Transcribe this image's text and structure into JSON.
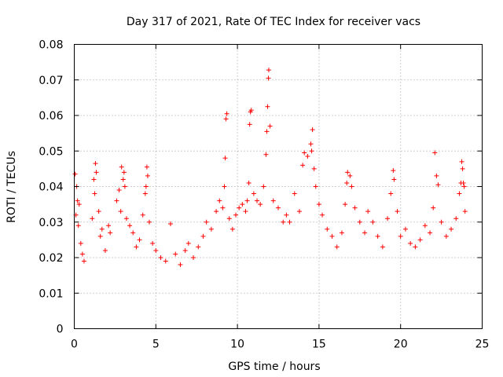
{
  "chart_data": {
    "type": "scatter",
    "title": "Day 317 of 2021, Rate Of TEC Index for receiver vacs",
    "xlabel": "GPS time / hours",
    "ylabel": "ROTI / TECUs",
    "xlim": [
      0,
      25
    ],
    "ylim": [
      0,
      0.08
    ],
    "x_ticks": [
      "0",
      "5",
      "10",
      "15",
      "20",
      "25"
    ],
    "y_ticks": [
      "0",
      "0.01",
      "0.02",
      "0.03",
      "0.04",
      "0.05",
      "0.06",
      "0.07",
      "0.08"
    ],
    "grid": true,
    "marker": "+",
    "color": "#ff0000",
    "series": [
      {
        "name": "ROTI",
        "points": [
          [
            0.05,
            0.0435
          ],
          [
            0.15,
            0.04
          ],
          [
            0.2,
            0.036
          ],
          [
            0.3,
            0.035
          ],
          [
            0.1,
            0.032
          ],
          [
            0.25,
            0.029
          ],
          [
            0.4,
            0.024
          ],
          [
            0.5,
            0.021
          ],
          [
            0.6,
            0.019
          ],
          [
            1.1,
            0.031
          ],
          [
            1.2,
            0.042
          ],
          [
            1.3,
            0.0465
          ],
          [
            1.35,
            0.044
          ],
          [
            1.25,
            0.038
          ],
          [
            1.5,
            0.033
          ],
          [
            1.7,
            0.028
          ],
          [
            1.6,
            0.026
          ],
          [
            1.9,
            0.022
          ],
          [
            2.1,
            0.029
          ],
          [
            2.2,
            0.027
          ],
          [
            2.6,
            0.036
          ],
          [
            2.75,
            0.039
          ],
          [
            2.9,
            0.0455
          ],
          [
            3.0,
            0.042
          ],
          [
            3.05,
            0.044
          ],
          [
            3.1,
            0.04
          ],
          [
            2.85,
            0.033
          ],
          [
            3.2,
            0.031
          ],
          [
            3.4,
            0.029
          ],
          [
            3.6,
            0.027
          ],
          [
            3.8,
            0.023
          ],
          [
            4.0,
            0.025
          ],
          [
            4.2,
            0.032
          ],
          [
            4.35,
            0.038
          ],
          [
            4.45,
            0.0455
          ],
          [
            4.5,
            0.043
          ],
          [
            4.4,
            0.04
          ],
          [
            4.6,
            0.03
          ],
          [
            4.8,
            0.024
          ],
          [
            5.0,
            0.022
          ],
          [
            5.3,
            0.02
          ],
          [
            5.6,
            0.019
          ],
          [
            5.9,
            0.0295
          ],
          [
            6.2,
            0.021
          ],
          [
            6.5,
            0.018
          ],
          [
            6.8,
            0.022
          ],
          [
            7.0,
            0.024
          ],
          [
            7.3,
            0.02
          ],
          [
            7.6,
            0.023
          ],
          [
            7.9,
            0.026
          ],
          [
            8.1,
            0.03
          ],
          [
            8.4,
            0.028
          ],
          [
            8.7,
            0.033
          ],
          [
            8.9,
            0.036
          ],
          [
            9.1,
            0.034
          ],
          [
            9.2,
            0.04
          ],
          [
            9.25,
            0.048
          ],
          [
            9.3,
            0.059
          ],
          [
            9.35,
            0.0605
          ],
          [
            9.5,
            0.031
          ],
          [
            9.7,
            0.028
          ],
          [
            9.9,
            0.032
          ],
          [
            10.1,
            0.034
          ],
          [
            10.3,
            0.035
          ],
          [
            10.5,
            0.033
          ],
          [
            10.6,
            0.036
          ],
          [
            10.7,
            0.041
          ],
          [
            10.75,
            0.0575
          ],
          [
            10.8,
            0.061
          ],
          [
            10.85,
            0.0615
          ],
          [
            11.0,
            0.038
          ],
          [
            11.2,
            0.036
          ],
          [
            11.4,
            0.035
          ],
          [
            11.6,
            0.04
          ],
          [
            11.75,
            0.049
          ],
          [
            11.8,
            0.0555
          ],
          [
            11.85,
            0.0625
          ],
          [
            11.9,
            0.0705
          ],
          [
            11.92,
            0.0728
          ],
          [
            12.0,
            0.057
          ],
          [
            12.2,
            0.036
          ],
          [
            12.5,
            0.034
          ],
          [
            12.8,
            0.03
          ],
          [
            13.0,
            0.032
          ],
          [
            13.2,
            0.03
          ],
          [
            13.5,
            0.038
          ],
          [
            13.8,
            0.033
          ],
          [
            14.0,
            0.046
          ],
          [
            14.1,
            0.0495
          ],
          [
            14.3,
            0.0485
          ],
          [
            14.5,
            0.052
          ],
          [
            14.6,
            0.056
          ],
          [
            14.55,
            0.05
          ],
          [
            14.7,
            0.045
          ],
          [
            14.8,
            0.04
          ],
          [
            15.0,
            0.035
          ],
          [
            15.2,
            0.032
          ],
          [
            15.5,
            0.028
          ],
          [
            15.8,
            0.026
          ],
          [
            16.1,
            0.023
          ],
          [
            16.4,
            0.027
          ],
          [
            16.6,
            0.035
          ],
          [
            16.7,
            0.041
          ],
          [
            16.75,
            0.044
          ],
          [
            16.9,
            0.043
          ],
          [
            17.0,
            0.04
          ],
          [
            17.2,
            0.034
          ],
          [
            17.5,
            0.03
          ],
          [
            17.8,
            0.027
          ],
          [
            18.0,
            0.033
          ],
          [
            18.3,
            0.03
          ],
          [
            18.6,
            0.026
          ],
          [
            18.9,
            0.023
          ],
          [
            19.2,
            0.031
          ],
          [
            19.4,
            0.038
          ],
          [
            19.55,
            0.0445
          ],
          [
            19.6,
            0.042
          ],
          [
            19.8,
            0.033
          ],
          [
            20.0,
            0.026
          ],
          [
            20.3,
            0.028
          ],
          [
            20.6,
            0.024
          ],
          [
            20.9,
            0.023
          ],
          [
            21.2,
            0.025
          ],
          [
            21.5,
            0.029
          ],
          [
            21.8,
            0.027
          ],
          [
            22.0,
            0.034
          ],
          [
            22.1,
            0.0495
          ],
          [
            22.2,
            0.043
          ],
          [
            22.3,
            0.0405
          ],
          [
            22.5,
            0.03
          ],
          [
            22.8,
            0.026
          ],
          [
            23.1,
            0.028
          ],
          [
            23.4,
            0.031
          ],
          [
            23.6,
            0.038
          ],
          [
            23.7,
            0.041
          ],
          [
            23.75,
            0.047
          ],
          [
            23.8,
            0.045
          ],
          [
            23.85,
            0.041
          ],
          [
            23.9,
            0.04
          ],
          [
            23.95,
            0.033
          ]
        ]
      }
    ]
  }
}
